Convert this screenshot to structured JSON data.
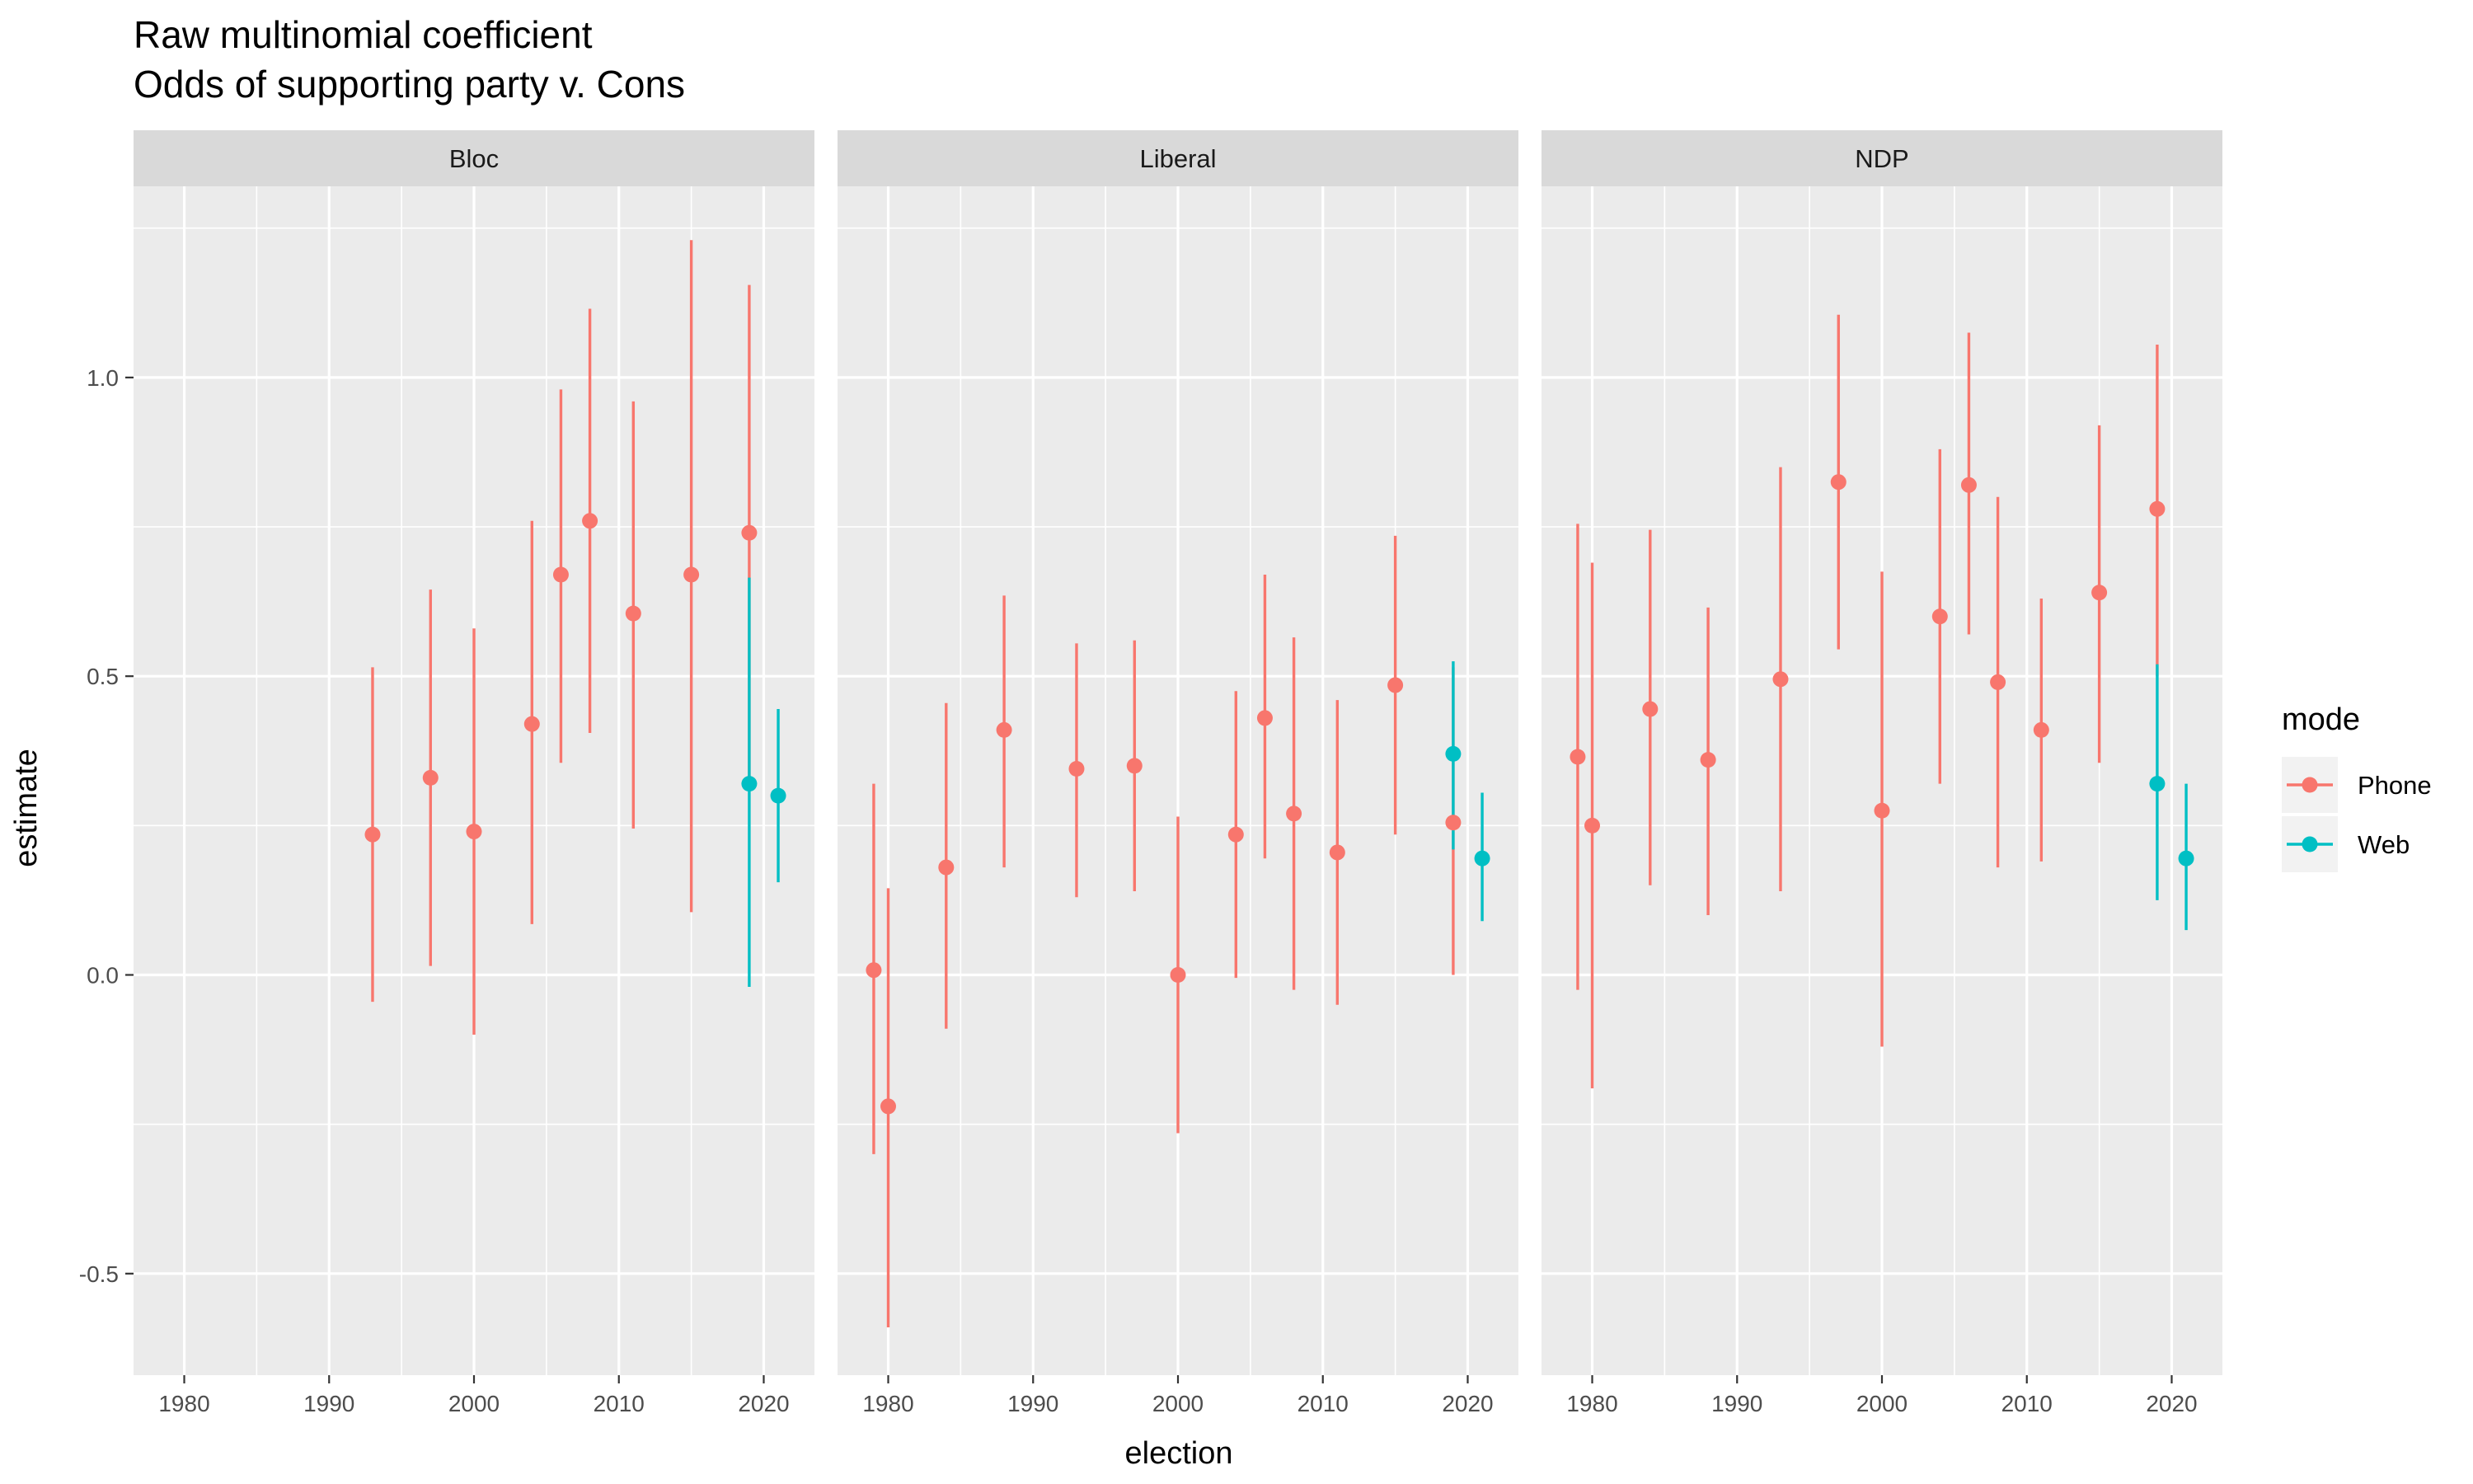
{
  "chart_data": {
    "type": "pointrange",
    "title": "Raw multinomial coefficient",
    "subtitle": "Odds of supporting party v. Cons",
    "xlabel": "election",
    "ylabel": "estimate",
    "xlim": [
      1976.5,
      2023.5
    ],
    "ylim": [
      -0.67,
      1.32
    ],
    "x_ticks": [
      1980,
      1990,
      2000,
      2010,
      2020
    ],
    "x_tick_labels": [
      "1980",
      "1990",
      "2000",
      "2010",
      "2020"
    ],
    "y_ticks": [
      -0.5,
      0.0,
      0.5,
      1.0
    ],
    "y_tick_labels": [
      "-0.5",
      "0.0",
      "0.5",
      "1.0"
    ],
    "grid": true,
    "legend": {
      "title": "mode",
      "position": "right",
      "entries": [
        {
          "name": "Phone",
          "color": "#F8766D"
        },
        {
          "name": "Web",
          "color": "#00BFC4"
        }
      ]
    },
    "panels": [
      {
        "label": "Bloc",
        "points": [
          {
            "x": 1993,
            "y": 0.235,
            "lo": -0.045,
            "hi": 0.515,
            "mode": "Phone"
          },
          {
            "x": 1997,
            "y": 0.33,
            "lo": 0.015,
            "hi": 0.645,
            "mode": "Phone"
          },
          {
            "x": 2000,
            "y": 0.24,
            "lo": -0.1,
            "hi": 0.58,
            "mode": "Phone"
          },
          {
            "x": 2004,
            "y": 0.42,
            "lo": 0.085,
            "hi": 0.76,
            "mode": "Phone"
          },
          {
            "x": 2006,
            "y": 0.67,
            "lo": 0.355,
            "hi": 0.98,
            "mode": "Phone"
          },
          {
            "x": 2008,
            "y": 0.76,
            "lo": 0.405,
            "hi": 1.115,
            "mode": "Phone"
          },
          {
            "x": 2011,
            "y": 0.605,
            "lo": 0.245,
            "hi": 0.96,
            "mode": "Phone"
          },
          {
            "x": 2015,
            "y": 0.67,
            "lo": 0.105,
            "hi": 1.23,
            "mode": "Phone"
          },
          {
            "x": 2019,
            "y": 0.74,
            "lo": 0.33,
            "hi": 1.155,
            "mode": "Phone"
          },
          {
            "x": 2019,
            "y": 0.32,
            "lo": -0.02,
            "hi": 0.665,
            "mode": "Web"
          },
          {
            "x": 2021,
            "y": 0.3,
            "lo": 0.155,
            "hi": 0.445,
            "mode": "Web"
          }
        ]
      },
      {
        "label": "Liberal",
        "points": [
          {
            "x": 1979,
            "y": 0.008,
            "lo": -0.3,
            "hi": 0.32,
            "mode": "Phone"
          },
          {
            "x": 1980,
            "y": -0.22,
            "lo": -0.59,
            "hi": 0.145,
            "mode": "Phone"
          },
          {
            "x": 1984,
            "y": 0.18,
            "lo": -0.09,
            "hi": 0.455,
            "mode": "Phone"
          },
          {
            "x": 1988,
            "y": 0.41,
            "lo": 0.18,
            "hi": 0.635,
            "mode": "Phone"
          },
          {
            "x": 1993,
            "y": 0.345,
            "lo": 0.13,
            "hi": 0.555,
            "mode": "Phone"
          },
          {
            "x": 1997,
            "y": 0.35,
            "lo": 0.14,
            "hi": 0.56,
            "mode": "Phone"
          },
          {
            "x": 2000,
            "y": 0.0,
            "lo": -0.265,
            "hi": 0.265,
            "mode": "Phone"
          },
          {
            "x": 2004,
            "y": 0.235,
            "lo": -0.005,
            "hi": 0.475,
            "mode": "Phone"
          },
          {
            "x": 2006,
            "y": 0.43,
            "lo": 0.195,
            "hi": 0.67,
            "mode": "Phone"
          },
          {
            "x": 2008,
            "y": 0.27,
            "lo": -0.025,
            "hi": 0.565,
            "mode": "Phone"
          },
          {
            "x": 2011,
            "y": 0.205,
            "lo": -0.05,
            "hi": 0.46,
            "mode": "Phone"
          },
          {
            "x": 2015,
            "y": 0.485,
            "lo": 0.235,
            "hi": 0.735,
            "mode": "Phone"
          },
          {
            "x": 2019,
            "y": 0.255,
            "lo": 0.0,
            "hi": 0.515,
            "mode": "Phone"
          },
          {
            "x": 2019,
            "y": 0.37,
            "lo": 0.21,
            "hi": 0.525,
            "mode": "Web"
          },
          {
            "x": 2021,
            "y": 0.195,
            "lo": 0.09,
            "hi": 0.305,
            "mode": "Web"
          }
        ]
      },
      {
        "label": "NDP",
        "points": [
          {
            "x": 1979,
            "y": 0.365,
            "lo": -0.025,
            "hi": 0.755,
            "mode": "Phone"
          },
          {
            "x": 1980,
            "y": 0.25,
            "lo": -0.19,
            "hi": 0.69,
            "mode": "Phone"
          },
          {
            "x": 1984,
            "y": 0.445,
            "lo": 0.15,
            "hi": 0.745,
            "mode": "Phone"
          },
          {
            "x": 1988,
            "y": 0.36,
            "lo": 0.1,
            "hi": 0.615,
            "mode": "Phone"
          },
          {
            "x": 1993,
            "y": 0.495,
            "lo": 0.14,
            "hi": 0.85,
            "mode": "Phone"
          },
          {
            "x": 1997,
            "y": 0.825,
            "lo": 0.545,
            "hi": 1.105,
            "mode": "Phone"
          },
          {
            "x": 2000,
            "y": 0.275,
            "lo": -0.12,
            "hi": 0.675,
            "mode": "Phone"
          },
          {
            "x": 2004,
            "y": 0.6,
            "lo": 0.32,
            "hi": 0.88,
            "mode": "Phone"
          },
          {
            "x": 2006,
            "y": 0.82,
            "lo": 0.57,
            "hi": 1.075,
            "mode": "Phone"
          },
          {
            "x": 2008,
            "y": 0.49,
            "lo": 0.18,
            "hi": 0.8,
            "mode": "Phone"
          },
          {
            "x": 2011,
            "y": 0.41,
            "lo": 0.19,
            "hi": 0.63,
            "mode": "Phone"
          },
          {
            "x": 2015,
            "y": 0.64,
            "lo": 0.355,
            "hi": 0.92,
            "mode": "Phone"
          },
          {
            "x": 2019,
            "y": 0.78,
            "lo": 0.5,
            "hi": 1.055,
            "mode": "Phone"
          },
          {
            "x": 2019,
            "y": 0.32,
            "lo": 0.125,
            "hi": 0.52,
            "mode": "Web"
          },
          {
            "x": 2021,
            "y": 0.195,
            "lo": 0.075,
            "hi": 0.32,
            "mode": "Web"
          }
        ]
      }
    ]
  }
}
